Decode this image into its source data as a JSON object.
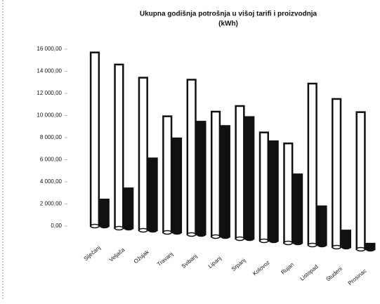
{
  "chart_data": {
    "type": "bar",
    "title": "Ukupna godišnja potrošnja u višoj tarifi i proizvodnja",
    "subtitle": "(kWh)",
    "categories": [
      "Siječanj",
      "Veljača",
      "Ožujak",
      "Travanj",
      "Svibanj",
      "Lipanj",
      "Srpanj",
      "Kolovoz",
      "Rujan",
      "Listopad",
      "Studeni",
      "Prosinac"
    ],
    "series": [
      {
        "color": "#ffffff",
        "values": [
          15700,
          14800,
          13800,
          10500,
          14000,
          11300,
          12000,
          9800,
          9000,
          14600,
          13400,
          12400
        ]
      },
      {
        "color": "#111111",
        "values": [
          2400,
          3600,
          6500,
          8500,
          10200,
          10000,
          11000,
          9000,
          6200,
          3500,
          1500,
          500
        ]
      }
    ],
    "ylim": [
      0,
      16000
    ],
    "yticks": [
      {
        "value": 0,
        "label": "0,00"
      },
      {
        "value": 2000,
        "label": "2 000,00"
      },
      {
        "value": 4000,
        "label": "4 000,00"
      },
      {
        "value": 6000,
        "label": "6 000,00"
      },
      {
        "value": 8000,
        "label": "8 000,00"
      },
      {
        "value": 10000,
        "label": "10 000,00"
      },
      {
        "value": 12000,
        "label": "12 000,00"
      },
      {
        "value": 14000,
        "label": "14 000,00"
      },
      {
        "value": 16000,
        "label": "16 000,00"
      }
    ]
  }
}
